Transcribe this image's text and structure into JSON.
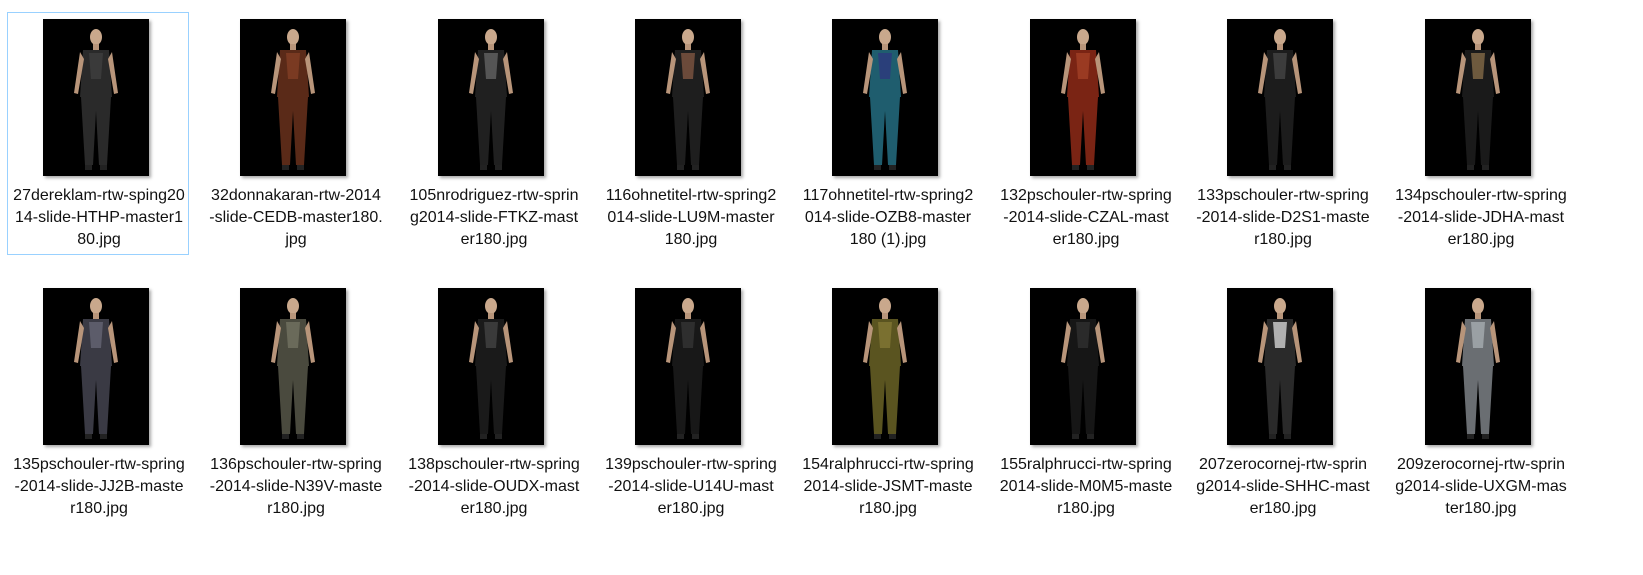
{
  "window": {
    "view": "large-icons"
  },
  "files": [
    {
      "name": "27dereklam-rtw-sping2014-slide-HTHP-master180.jpg",
      "selected": true,
      "outfit": "#2a2a2a",
      "accent": "#3a3a3a"
    },
    {
      "name": "32donnakaran-rtw-2014-slide-CEDB-master180.jpg",
      "selected": false,
      "outfit": "#5a2a18",
      "accent": "#7a3a22"
    },
    {
      "name": "105nrodriguez-rtw-spring2014-slide-FTKZ-master180.jpg",
      "selected": false,
      "outfit": "#202020",
      "accent": "#555555"
    },
    {
      "name": "116ohnetitel-rtw-spring2014-slide-LU9M-master180.jpg",
      "selected": false,
      "outfit": "#1e1e1e",
      "accent": "#6b4a3a"
    },
    {
      "name": "117ohnetitel-rtw-spring2014-slide-OZB8-master180 (1).jpg",
      "selected": false,
      "outfit": "#1f5d6e",
      "accent": "#2a3f7a"
    },
    {
      "name": "132pschouler-rtw-spring-2014-slide-CZAL-master180.jpg",
      "selected": false,
      "outfit": "#7a2414",
      "accent": "#9a3a22"
    },
    {
      "name": "133pschouler-rtw-spring-2014-slide-D2S1-master180.jpg",
      "selected": false,
      "outfit": "#1c1c1c",
      "accent": "#3c3c3c"
    },
    {
      "name": "134pschouler-rtw-spring-2014-slide-JDHA-master180.jpg",
      "selected": false,
      "outfit": "#1a1a1a",
      "accent": "#6e5a3e"
    },
    {
      "name": "135pschouler-rtw-spring-2014-slide-JJ2B-master180.jpg",
      "selected": false,
      "outfit": "#3a3a44",
      "accent": "#5c5c6a"
    },
    {
      "name": "136pschouler-rtw-spring-2014-slide-N39V-master180.jpg",
      "selected": false,
      "outfit": "#4a4a3e",
      "accent": "#6a6a5a"
    },
    {
      "name": "138pschouler-rtw-spring-2014-slide-OUDX-master180.jpg",
      "selected": false,
      "outfit": "#1a1a1a",
      "accent": "#3a3a3a"
    },
    {
      "name": "139pschouler-rtw-spring-2014-slide-U14U-master180.jpg",
      "selected": false,
      "outfit": "#181818",
      "accent": "#2e2e2e"
    },
    {
      "name": "154ralphrucci-rtw-spring2014-slide-JSMT-master180.jpg",
      "selected": false,
      "outfit": "#5a5420",
      "accent": "#7a7030"
    },
    {
      "name": "155ralphrucci-rtw-spring2014-slide-M0M5-master180.jpg",
      "selected": false,
      "outfit": "#161616",
      "accent": "#2a2a2a"
    },
    {
      "name": "207zerocornej-rtw-spring2014-slide-SHHC-master180.jpg",
      "selected": false,
      "outfit": "#2a2a2a",
      "accent": "#b0b0b0"
    },
    {
      "name": "209zerocornej-rtw-spring2014-slide-UXGM-master180.jpg",
      "selected": false,
      "outfit": "#6a6e72",
      "accent": "#9aa0a4"
    }
  ]
}
